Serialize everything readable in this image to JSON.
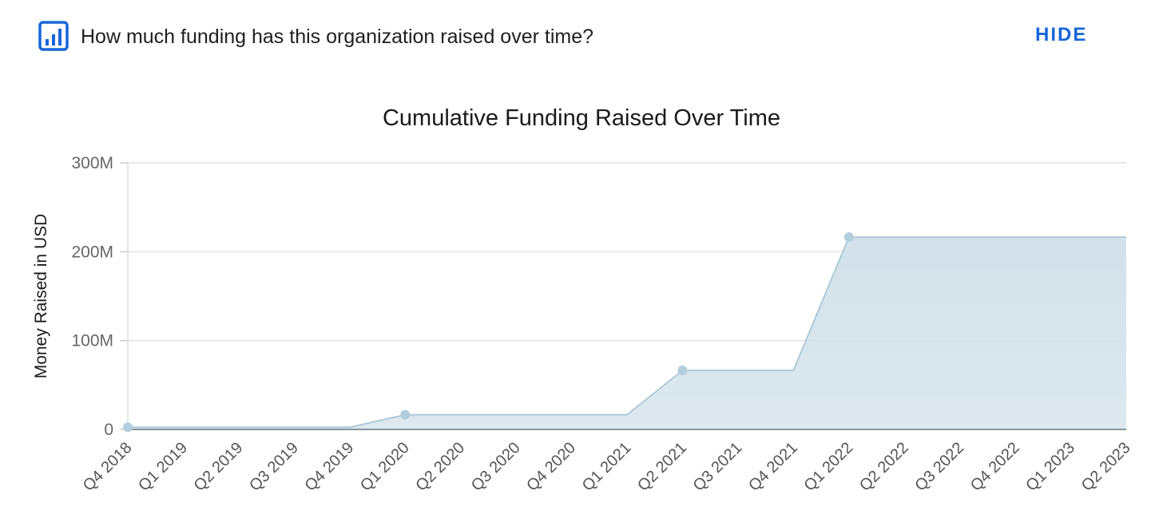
{
  "header": {
    "question": "How much funding has this organization raised over time?",
    "hide_label": "HIDE",
    "icon": "bar-chart-icon"
  },
  "colors": {
    "accent": "#1767d8",
    "series_line": "#a9c6d8",
    "series_fill": "#cfdfe8",
    "marker": "#b3cddd"
  },
  "chart_data": {
    "type": "area",
    "title": "Cumulative Funding Raised Over Time",
    "ylabel": "Money Raised in USD",
    "xlabel": "",
    "categories": [
      "Q4 2018",
      "Q1 2019",
      "Q2 2019",
      "Q3 2019",
      "Q4 2019",
      "Q1 2020",
      "Q2 2020",
      "Q3 2020",
      "Q4 2020",
      "Q1 2021",
      "Q2 2021",
      "Q3 2021",
      "Q4 2021",
      "Q1 2022",
      "Q2 2022",
      "Q3 2022",
      "Q4 2022",
      "Q1 2023",
      "Q2 2023"
    ],
    "y_ticks": [
      {
        "value": 0,
        "label": "0"
      },
      {
        "value": 100000000,
        "label": "100M"
      },
      {
        "value": 200000000,
        "label": "200M"
      },
      {
        "value": 300000000,
        "label": "300M"
      }
    ],
    "ylim": [
      0,
      300000000
    ],
    "grid": true,
    "series": [
      {
        "points": [
          {
            "x": "Q4 2018",
            "y": 2500000
          },
          {
            "x": "Q4 2019",
            "y": 2500000
          },
          {
            "x": "Q1 2020",
            "y": 16500000
          },
          {
            "x": "Q1 2021",
            "y": 16500000
          },
          {
            "x": "Q2 2021",
            "y": 66500000
          },
          {
            "x": "Q4 2021",
            "y": 66500000
          },
          {
            "x": "Q1 2022",
            "y": 216500000
          },
          {
            "x": "Q2 2023",
            "y": 216500000
          }
        ],
        "markers": [
          {
            "x": "Q4 2018",
            "y": 2500000
          },
          {
            "x": "Q1 2020",
            "y": 16500000
          },
          {
            "x": "Q2 2021",
            "y": 66500000
          },
          {
            "x": "Q1 2022",
            "y": 216500000
          }
        ]
      }
    ]
  }
}
